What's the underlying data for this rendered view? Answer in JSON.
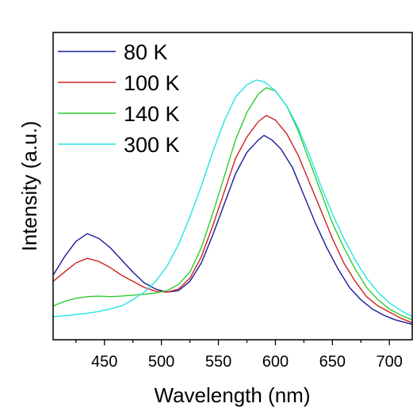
{
  "chart_data": {
    "type": "line",
    "xlabel": "Wavelength (nm)",
    "ylabel": "Intensity (a.u.)",
    "xlim": [
      405,
      720
    ],
    "ylim": [
      0,
      1.0
    ],
    "x_ticks": [
      450,
      500,
      550,
      600,
      650,
      700
    ],
    "y_ticks_shown": false,
    "grid": false,
    "legend_position": "top-left",
    "series": [
      {
        "name": "80 K",
        "color": "#1a1a9c",
        "points": [
          [
            405,
            0.21
          ],
          [
            415,
            0.27
          ],
          [
            425,
            0.32
          ],
          [
            435,
            0.345
          ],
          [
            445,
            0.33
          ],
          [
            455,
            0.3
          ],
          [
            465,
            0.26
          ],
          [
            475,
            0.22
          ],
          [
            485,
            0.185
          ],
          [
            495,
            0.165
          ],
          [
            505,
            0.155
          ],
          [
            515,
            0.16
          ],
          [
            525,
            0.19
          ],
          [
            535,
            0.25
          ],
          [
            545,
            0.34
          ],
          [
            555,
            0.44
          ],
          [
            565,
            0.54
          ],
          [
            575,
            0.61
          ],
          [
            585,
            0.65
          ],
          [
            590,
            0.665
          ],
          [
            597,
            0.65
          ],
          [
            605,
            0.62
          ],
          [
            615,
            0.56
          ],
          [
            625,
            0.47
          ],
          [
            635,
            0.38
          ],
          [
            645,
            0.3
          ],
          [
            655,
            0.23
          ],
          [
            665,
            0.17
          ],
          [
            675,
            0.13
          ],
          [
            685,
            0.1
          ],
          [
            695,
            0.08
          ],
          [
            705,
            0.065
          ],
          [
            720,
            0.05
          ]
        ]
      },
      {
        "name": "100 K",
        "color": "#d02020",
        "points": [
          [
            405,
            0.19
          ],
          [
            415,
            0.22
          ],
          [
            425,
            0.25
          ],
          [
            435,
            0.265
          ],
          [
            445,
            0.255
          ],
          [
            455,
            0.235
          ],
          [
            465,
            0.21
          ],
          [
            475,
            0.19
          ],
          [
            485,
            0.17
          ],
          [
            495,
            0.158
          ],
          [
            505,
            0.155
          ],
          [
            515,
            0.165
          ],
          [
            525,
            0.2
          ],
          [
            535,
            0.27
          ],
          [
            545,
            0.37
          ],
          [
            555,
            0.48
          ],
          [
            565,
            0.59
          ],
          [
            575,
            0.66
          ],
          [
            585,
            0.71
          ],
          [
            592,
            0.73
          ],
          [
            600,
            0.715
          ],
          [
            610,
            0.67
          ],
          [
            620,
            0.6
          ],
          [
            630,
            0.51
          ],
          [
            640,
            0.42
          ],
          [
            650,
            0.33
          ],
          [
            660,
            0.25
          ],
          [
            670,
            0.19
          ],
          [
            680,
            0.14
          ],
          [
            690,
            0.11
          ],
          [
            700,
            0.09
          ],
          [
            710,
            0.07
          ],
          [
            720,
            0.055
          ]
        ]
      },
      {
        "name": "140 K",
        "color": "#2ecc2e",
        "points": [
          [
            405,
            0.11
          ],
          [
            415,
            0.125
          ],
          [
            425,
            0.135
          ],
          [
            435,
            0.14
          ],
          [
            445,
            0.142
          ],
          [
            455,
            0.14
          ],
          [
            465,
            0.142
          ],
          [
            475,
            0.145
          ],
          [
            485,
            0.148
          ],
          [
            495,
            0.152
          ],
          [
            505,
            0.16
          ],
          [
            515,
            0.18
          ],
          [
            525,
            0.22
          ],
          [
            535,
            0.3
          ],
          [
            545,
            0.41
          ],
          [
            555,
            0.53
          ],
          [
            565,
            0.65
          ],
          [
            575,
            0.74
          ],
          [
            585,
            0.8
          ],
          [
            592,
            0.82
          ],
          [
            600,
            0.81
          ],
          [
            610,
            0.76
          ],
          [
            620,
            0.68
          ],
          [
            630,
            0.58
          ],
          [
            640,
            0.48
          ],
          [
            650,
            0.38
          ],
          [
            660,
            0.3
          ],
          [
            670,
            0.23
          ],
          [
            680,
            0.17
          ],
          [
            690,
            0.13
          ],
          [
            700,
            0.1
          ],
          [
            710,
            0.08
          ],
          [
            720,
            0.065
          ]
        ]
      },
      {
        "name": "300 K",
        "color": "#22e5e5",
        "points": [
          [
            405,
            0.075
          ],
          [
            415,
            0.078
          ],
          [
            425,
            0.082
          ],
          [
            435,
            0.086
          ],
          [
            445,
            0.092
          ],
          [
            455,
            0.1
          ],
          [
            465,
            0.11
          ],
          [
            475,
            0.13
          ],
          [
            485,
            0.155
          ],
          [
            495,
            0.19
          ],
          [
            505,
            0.24
          ],
          [
            515,
            0.31
          ],
          [
            525,
            0.4
          ],
          [
            535,
            0.5
          ],
          [
            545,
            0.61
          ],
          [
            555,
            0.71
          ],
          [
            565,
            0.79
          ],
          [
            575,
            0.83
          ],
          [
            583,
            0.845
          ],
          [
            590,
            0.84
          ],
          [
            600,
            0.81
          ],
          [
            610,
            0.76
          ],
          [
            620,
            0.69
          ],
          [
            630,
            0.6
          ],
          [
            640,
            0.5
          ],
          [
            650,
            0.41
          ],
          [
            660,
            0.33
          ],
          [
            670,
            0.26
          ],
          [
            680,
            0.2
          ],
          [
            690,
            0.155
          ],
          [
            700,
            0.12
          ],
          [
            710,
            0.095
          ],
          [
            720,
            0.075
          ]
        ]
      }
    ]
  }
}
